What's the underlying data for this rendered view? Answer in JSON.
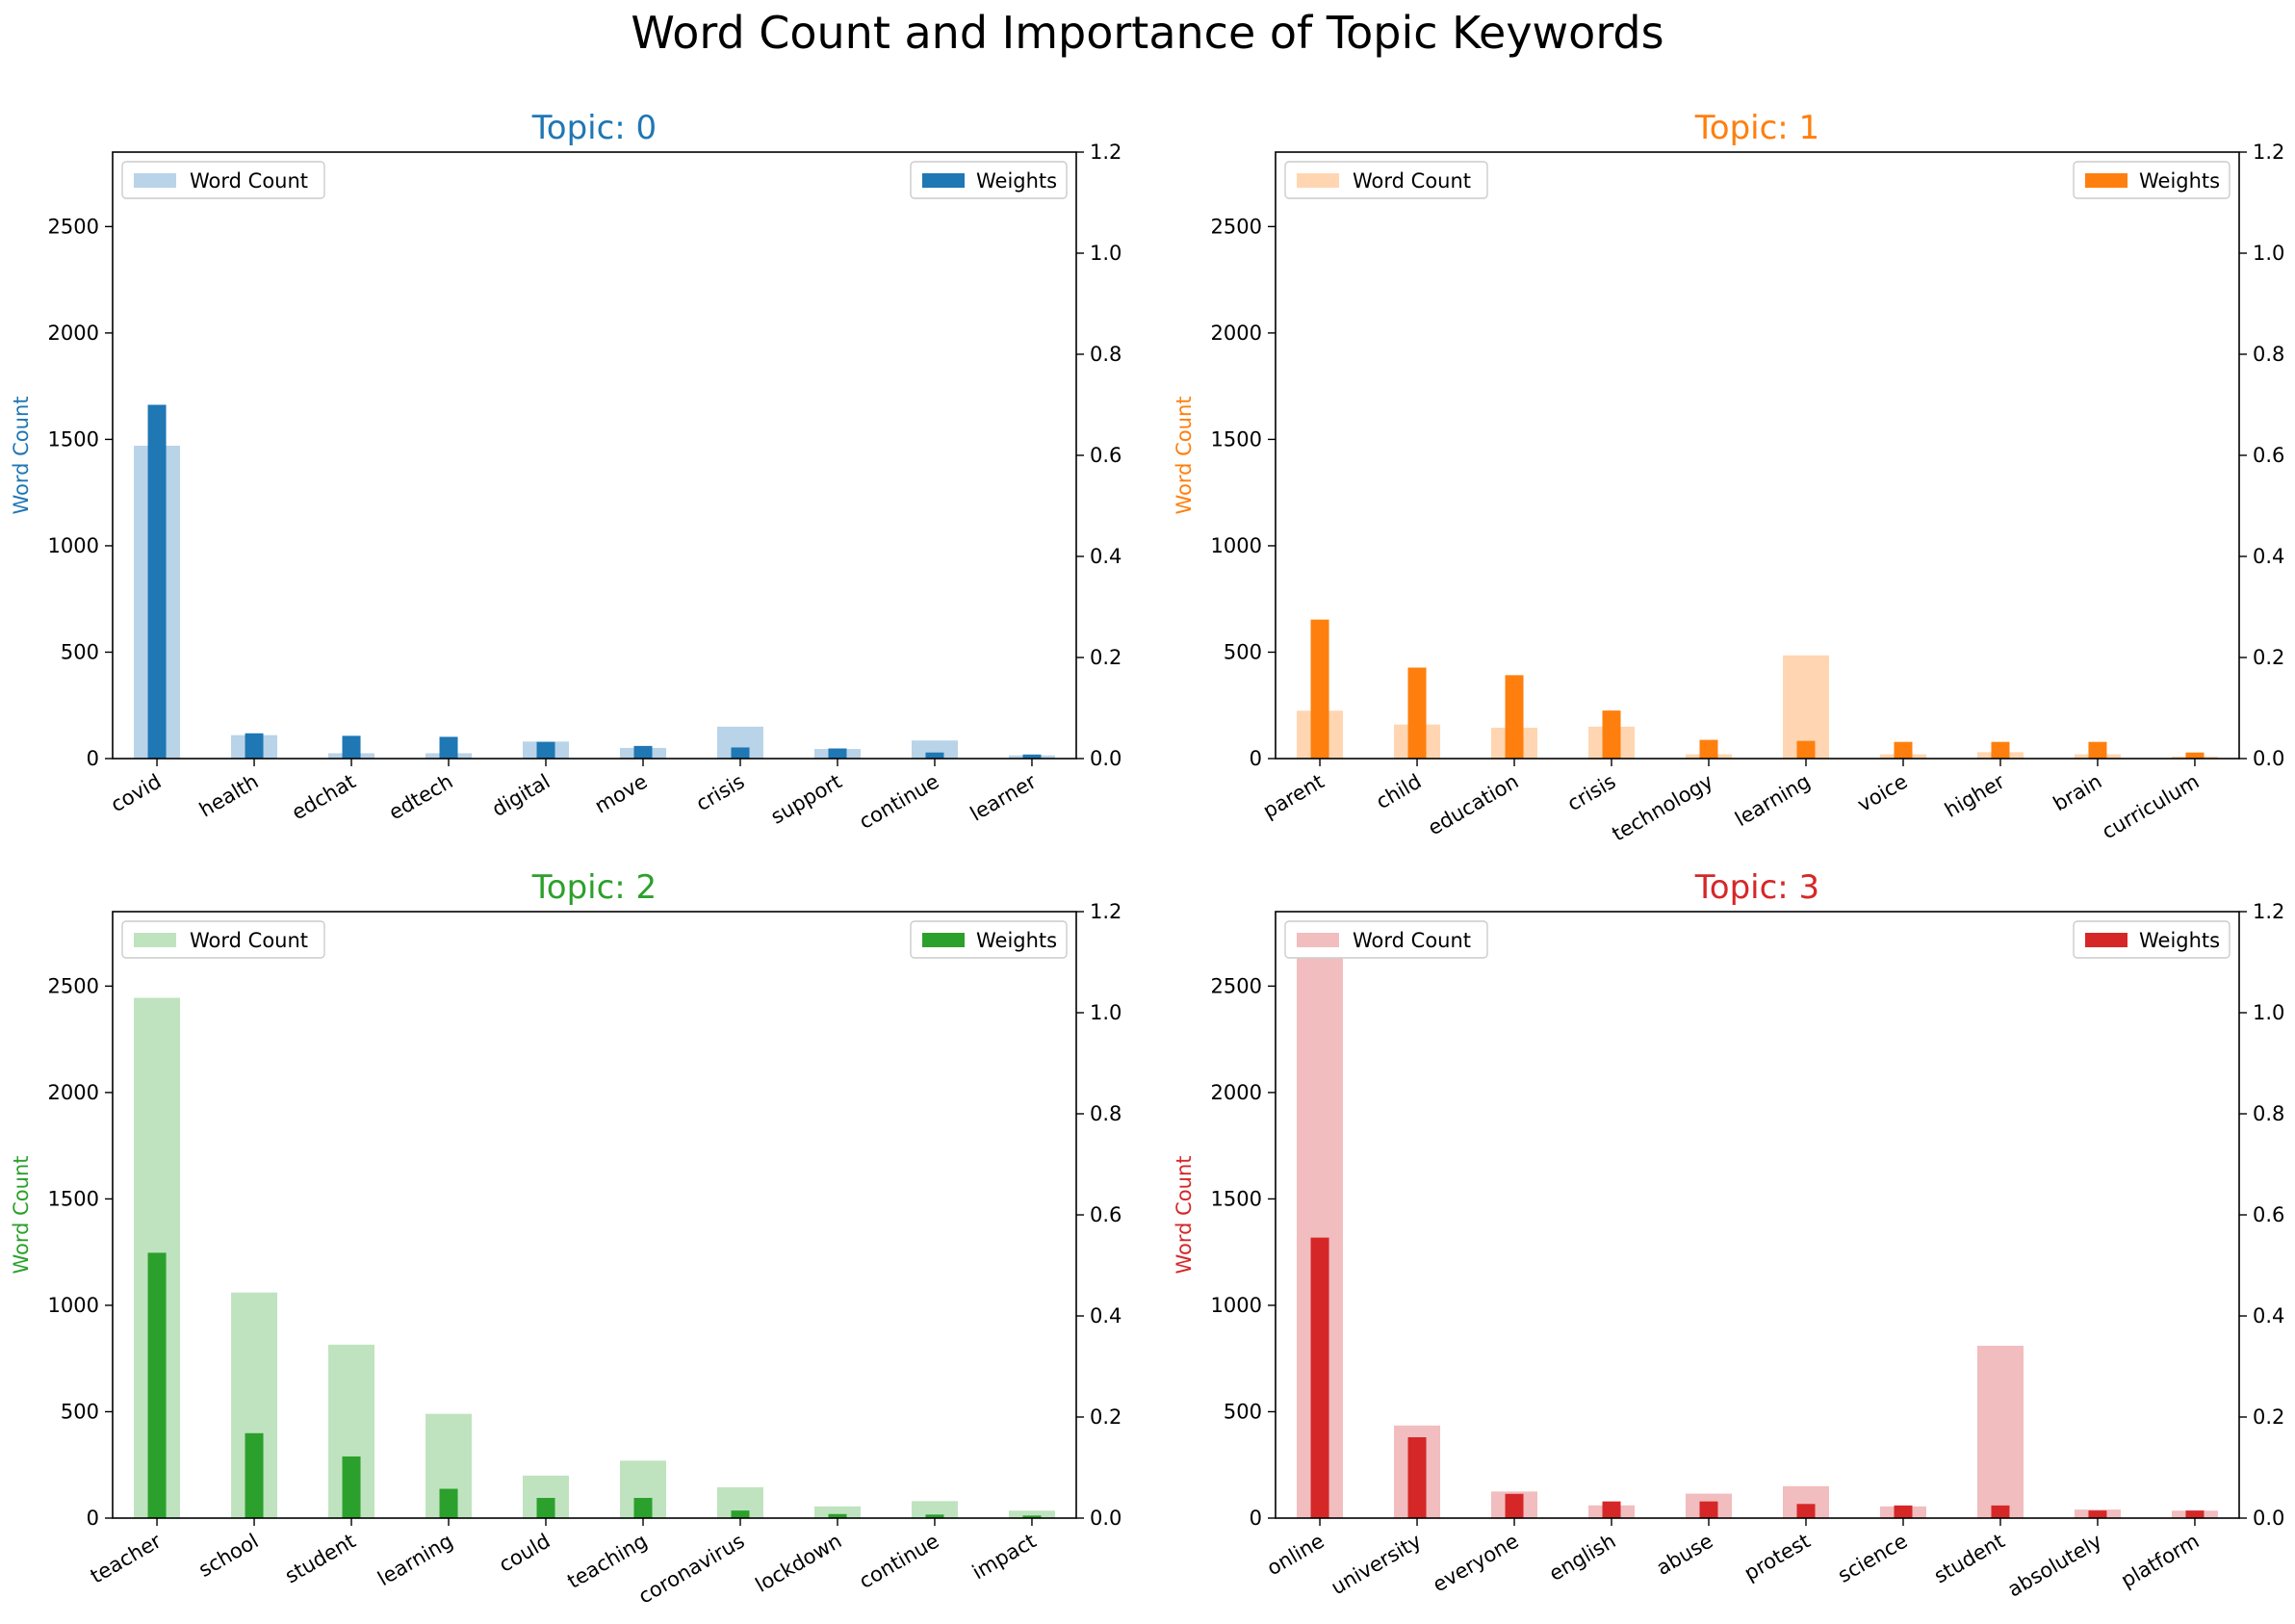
{
  "suptitle": "Word Count and Importance of Topic Keywords",
  "chart_data": [
    {
      "type": "bar",
      "title": "Topic: 0",
      "color": "#1f77b4",
      "light_color": "#b9d3e8",
      "ylabel": "Word Count",
      "legend_left": "Word Count",
      "legend_right": "Weights",
      "categories": [
        "covid",
        "health",
        "edchat",
        "edtech",
        "digital",
        "move",
        "crisis",
        "support",
        "continue",
        "learner"
      ],
      "series": [
        {
          "name": "Word Count",
          "axis": "left",
          "values": [
            1470,
            110,
            25,
            25,
            80,
            50,
            150,
            45,
            85,
            15
          ]
        },
        {
          "name": "Weights",
          "axis": "right",
          "values": [
            0.7,
            0.05,
            0.045,
            0.043,
            0.033,
            0.025,
            0.022,
            0.02,
            0.012,
            0.008
          ]
        }
      ],
      "ylim": [
        0,
        2850
      ],
      "y2lim": [
        0,
        1.2
      ],
      "yticks": [
        0,
        500,
        1000,
        1500,
        2000,
        2500
      ],
      "y2ticks": [
        "0.0",
        "0.2",
        "0.4",
        "0.6",
        "0.8",
        "1.0",
        "1.2"
      ]
    },
    {
      "type": "bar",
      "title": "Topic: 1",
      "color": "#ff7f0e",
      "light_color": "#ffd6b1",
      "ylabel": "Word Count",
      "legend_left": "Word Count",
      "legend_right": "Weights",
      "categories": [
        "parent",
        "child",
        "education",
        "crisis",
        "technology",
        "learning",
        "voice",
        "higher",
        "brain",
        "curriculum"
      ],
      "series": [
        {
          "name": "Word Count",
          "axis": "left",
          "values": [
            225,
            160,
            145,
            150,
            20,
            485,
            20,
            30,
            20,
            10
          ]
        },
        {
          "name": "Weights",
          "axis": "right",
          "values": [
            0.275,
            0.18,
            0.165,
            0.095,
            0.037,
            0.035,
            0.033,
            0.033,
            0.033,
            0.012
          ]
        }
      ],
      "ylim": [
        0,
        2850
      ],
      "y2lim": [
        0,
        1.2
      ],
      "yticks": [
        0,
        500,
        1000,
        1500,
        2000,
        2500
      ],
      "y2ticks": [
        "0.0",
        "0.2",
        "0.4",
        "0.6",
        "0.8",
        "1.0",
        "1.2"
      ]
    },
    {
      "type": "bar",
      "title": "Topic: 2",
      "color": "#2ca02c",
      "light_color": "#bfe3bf",
      "ylabel": "Word Count",
      "legend_left": "Word Count",
      "legend_right": "Weights",
      "categories": [
        "teacher",
        "school",
        "student",
        "learning",
        "could",
        "teaching",
        "coronavirus",
        "lockdown",
        "continue",
        "impact"
      ],
      "series": [
        {
          "name": "Word Count",
          "axis": "left",
          "values": [
            2445,
            1060,
            815,
            490,
            200,
            270,
            145,
            55,
            80,
            35
          ]
        },
        {
          "name": "Weights",
          "axis": "right",
          "values": [
            0.525,
            0.168,
            0.122,
            0.058,
            0.04,
            0.04,
            0.015,
            0.008,
            0.007,
            0.005
          ]
        }
      ],
      "ylim": [
        0,
        2850
      ],
      "y2lim": [
        0,
        1.2
      ],
      "yticks": [
        0,
        500,
        1000,
        1500,
        2000,
        2500
      ],
      "y2ticks": [
        "0.0",
        "0.2",
        "0.4",
        "0.6",
        "0.8",
        "1.0",
        "1.2"
      ]
    },
    {
      "type": "bar",
      "title": "Topic: 3",
      "color": "#d62728",
      "light_color": "#f1bdbe",
      "ylabel": "Word Count",
      "legend_left": "Word Count",
      "legend_right": "Weights",
      "categories": [
        "online",
        "university",
        "everyone",
        "english",
        "abuse",
        "protest",
        "science",
        "student",
        "absolutely",
        "platform"
      ],
      "series": [
        {
          "name": "Word Count",
          "axis": "left",
          "values": [
            2630,
            435,
            125,
            60,
            115,
            150,
            55,
            810,
            40,
            35
          ]
        },
        {
          "name": "Weights",
          "axis": "right",
          "values": [
            0.555,
            0.16,
            0.048,
            0.033,
            0.033,
            0.028,
            0.025,
            0.025,
            0.015,
            0.015
          ]
        }
      ],
      "ylim": [
        0,
        2850
      ],
      "y2lim": [
        0,
        1.2
      ],
      "yticks": [
        0,
        500,
        1000,
        1500,
        2000,
        2500
      ],
      "y2ticks": [
        "0.0",
        "0.2",
        "0.4",
        "0.6",
        "0.8",
        "1.0",
        "1.2"
      ]
    }
  ]
}
